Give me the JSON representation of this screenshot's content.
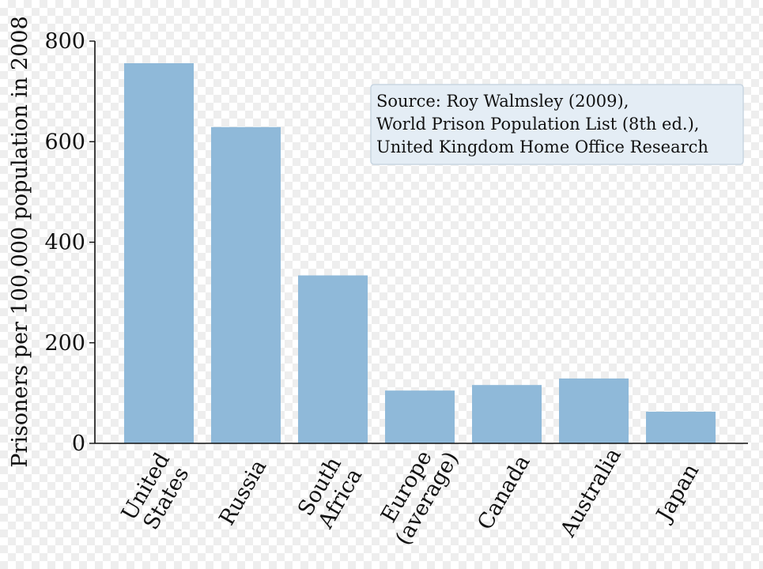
{
  "chart_data": {
    "type": "bar",
    "title": "",
    "xlabel": "",
    "ylabel": "Prisoners per 100,000 population in 2008",
    "ylim": [
      0,
      800
    ],
    "yticks": [
      0,
      200,
      400,
      600,
      800
    ],
    "categories": [
      [
        "United",
        "States"
      ],
      [
        "Russia"
      ],
      [
        "South",
        "Africa"
      ],
      [
        "Europe",
        "(average)"
      ],
      [
        "Canada"
      ],
      [
        "Australia"
      ],
      [
        "Japan"
      ]
    ],
    "values": [
      756,
      629,
      334,
      105,
      116,
      129,
      63
    ],
    "bar_color": "#8fb9d9",
    "grid": false,
    "annotation": [
      "Source: Roy Walmsley (2009),",
      "World Prison Population List (8th ed.),",
      "United Kingdom Home Office Research"
    ],
    "annotation_bg": "#e4edf5",
    "annotation_border": "#c9d6e2"
  }
}
